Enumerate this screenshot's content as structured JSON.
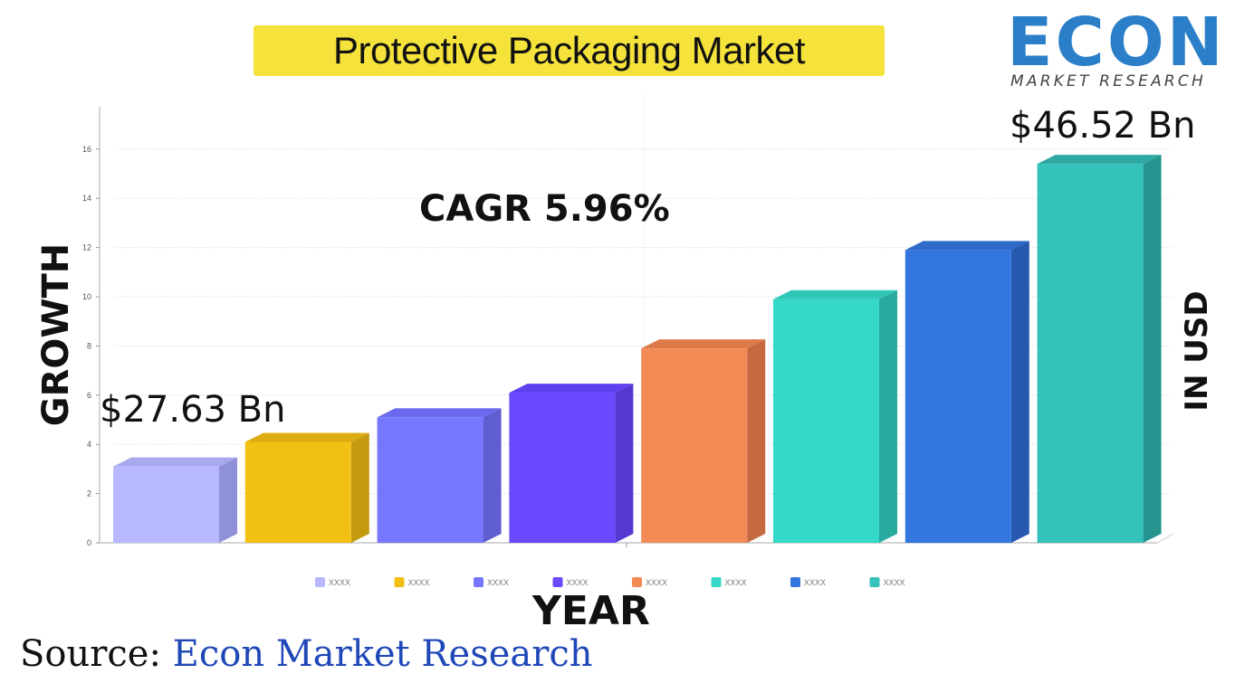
{
  "title": "Protective Packaging Market",
  "logo": {
    "brand": "ECON",
    "tagline": "MARKET RESEARCH"
  },
  "annotations": {
    "cagr": "CAGR 5.96%",
    "first_value": "$27.63 Bn",
    "last_value": "$46.52 Bn"
  },
  "axis_labels": {
    "y": "GROWTH",
    "y_right": "IN USD",
    "x": "YEAR"
  },
  "source": {
    "prefix": "Source: ",
    "name": "Econ Market Research"
  },
  "chart_data": {
    "type": "bar",
    "title": "Protective Packaging Market",
    "xlabel": "YEAR",
    "ylabel": "GROWTH",
    "ylim": [
      0,
      17
    ],
    "yticks": [
      0,
      2,
      4,
      6,
      8,
      10,
      12,
      14,
      16
    ],
    "grid": true,
    "legend_position": "bottom",
    "categories": [
      "XXXX",
      "XXXX",
      "XXXX",
      "XXXX",
      "XXXX",
      "XXXX",
      "XXXX",
      "XXXX"
    ],
    "values": [
      3.1,
      4.1,
      5.1,
      6.1,
      7.9,
      9.9,
      11.9,
      15.4
    ],
    "colors": [
      "#b8b8ff",
      "#f2c014",
      "#7676ff",
      "#6a49ff",
      "#f28a55",
      "#36d8c8",
      "#3376e0",
      "#34c2ba"
    ],
    "side_colors": [
      "#9090d8",
      "#c49a10",
      "#5e5ed0",
      "#5538d0",
      "#c56a40",
      "#28aa9e",
      "#2859b0",
      "#27958f"
    ],
    "top_colors": [
      "#a8a8ee",
      "#dcac12",
      "#6a6aee",
      "#5f40ee",
      "#de7a4a",
      "#30c6b6",
      "#2e6ac8",
      "#2faaa2"
    ]
  }
}
